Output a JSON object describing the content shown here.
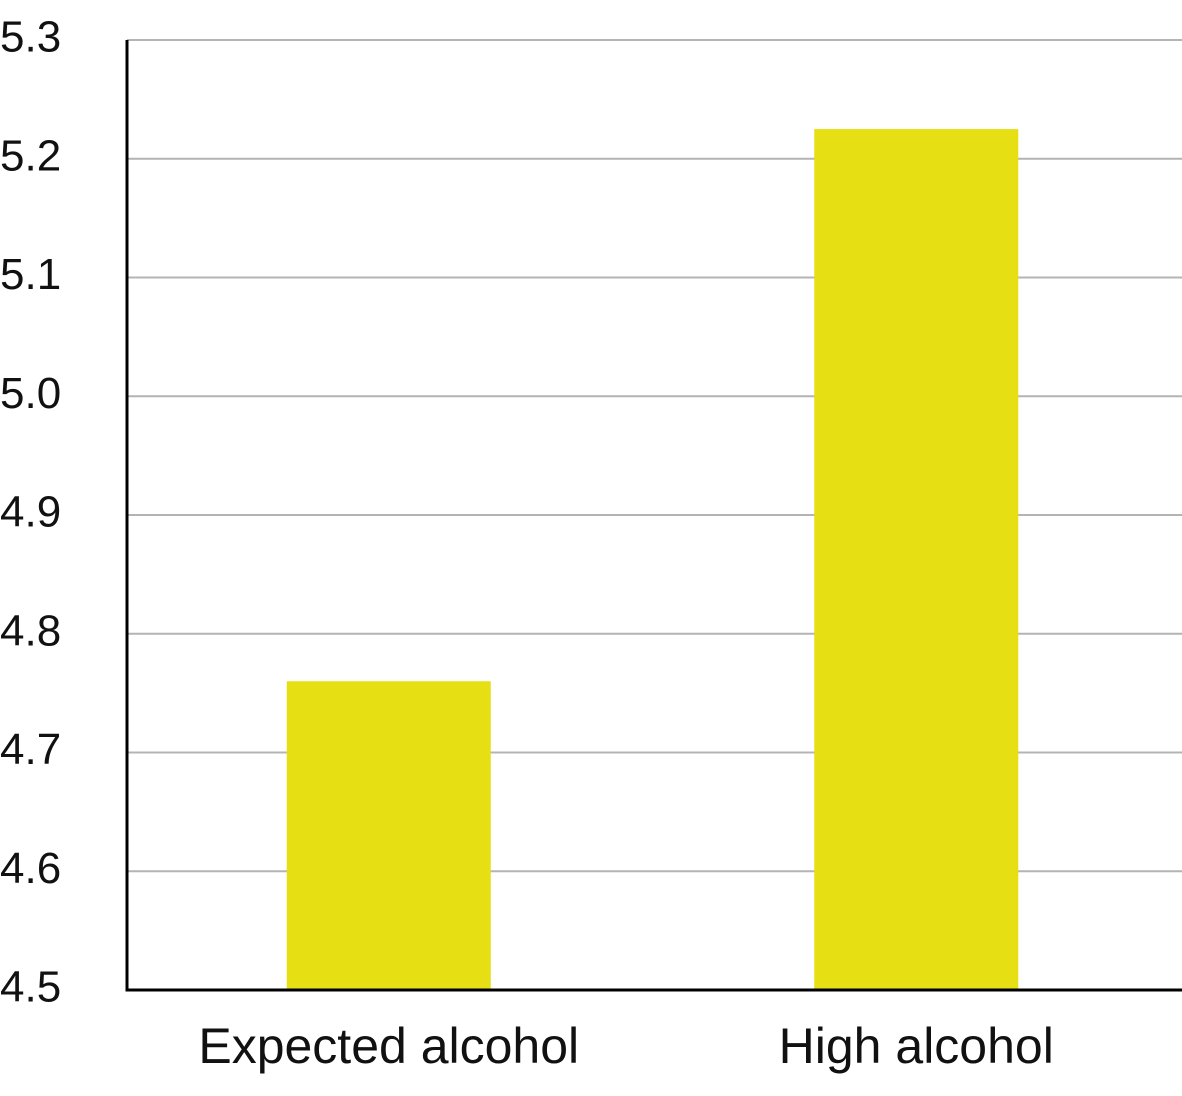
{
  "chart_data": {
    "type": "bar",
    "categories": [
      "Expected alcohol",
      "High alcohol"
    ],
    "values": [
      4.76,
      5.225
    ],
    "title": "",
    "xlabel": "",
    "ylabel": "",
    "ylim": [
      4.5,
      5.3
    ],
    "yticks": [
      "4.5",
      "4.6",
      "4.7",
      "4.8",
      "4.9",
      "5.0",
      "5.1",
      "5.2",
      "5.3"
    ],
    "grid": true,
    "bar_color": "#e6df14"
  }
}
